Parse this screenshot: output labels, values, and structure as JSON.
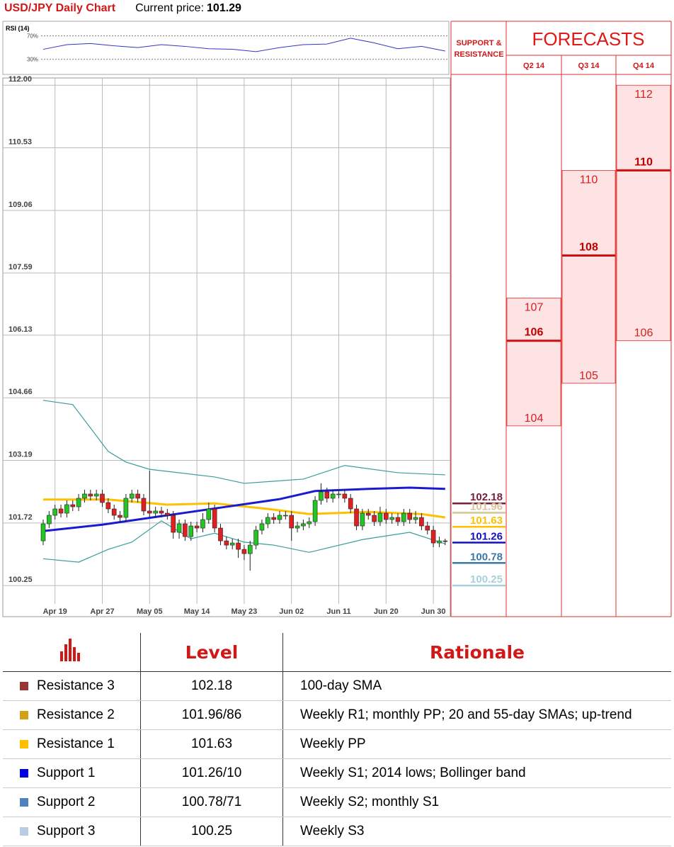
{
  "header": {
    "title": "USD/JPY Daily Chart",
    "price_label": "Current price:",
    "price": 101.29
  },
  "chart_data": [
    {
      "type": "candlestick",
      "grid": true,
      "up_color": "#22c522",
      "down_color": "#e02020",
      "ylim": [
        99.52,
        112.17
      ],
      "yticks": [
        {
          "value": 112,
          "label": "112.00"
        },
        110.53,
        109.06,
        107.59,
        106.13,
        104.66,
        103.19,
        101.72,
        100.25
      ],
      "categories": [
        null,
        null,
        "Apr 19",
        null,
        null,
        null,
        null,
        null,
        null,
        null,
        "Apr 27",
        null,
        null,
        null,
        null,
        null,
        null,
        null,
        "May 05",
        null,
        null,
        null,
        null,
        null,
        null,
        null,
        "May 14",
        null,
        null,
        null,
        null,
        null,
        null,
        null,
        "May 23",
        null,
        null,
        null,
        null,
        null,
        null,
        null,
        "Jun 02",
        null,
        null,
        null,
        null,
        null,
        null,
        null,
        "Jun 11",
        null,
        null,
        null,
        null,
        null,
        null,
        null,
        "Jun 20",
        null,
        null,
        null,
        null,
        null,
        null,
        null,
        "Jun 30",
        null,
        null
      ],
      "open": [
        101.3,
        101.7,
        101.9,
        102.05,
        101.95,
        102.15,
        102.1,
        102.3,
        102.4,
        102.35,
        102.4,
        102.2,
        102.05,
        101.9,
        101.85,
        102.3,
        102.4,
        102.3,
        102.0,
        101.95,
        102.0,
        101.95,
        101.9,
        101.5,
        101.7,
        101.4,
        101.65,
        101.6,
        101.8,
        102.05,
        101.6,
        101.3,
        101.2,
        101.25,
        101.1,
        101.0,
        101.2,
        101.55,
        101.7,
        101.85,
        101.8,
        101.9,
        101.9,
        101.6,
        101.65,
        101.7,
        101.75,
        102.25,
        102.45,
        102.3,
        102.4,
        102.4,
        102.3,
        102.05,
        101.65,
        101.95,
        101.9,
        101.75,
        101.95,
        101.8,
        101.85,
        101.75,
        101.95,
        101.8,
        101.85,
        101.65,
        101.55,
        101.25,
        101.3
      ],
      "high": [
        101.8,
        102.0,
        102.15,
        102.15,
        102.25,
        102.25,
        102.4,
        102.5,
        102.5,
        102.5,
        102.5,
        102.3,
        102.15,
        102.0,
        102.4,
        102.5,
        102.5,
        102.4,
        102.95,
        102.1,
        102.1,
        102.05,
        102.0,
        101.8,
        101.8,
        101.75,
        101.75,
        101.95,
        102.2,
        102.15,
        101.7,
        101.4,
        101.35,
        101.35,
        101.2,
        101.3,
        101.65,
        101.8,
        101.95,
        101.95,
        102.0,
        102.0,
        102.0,
        101.75,
        101.8,
        101.85,
        102.35,
        102.65,
        102.55,
        102.5,
        102.5,
        102.5,
        102.4,
        102.15,
        102.05,
        102.05,
        102.0,
        102.1,
        102.05,
        101.95,
        101.95,
        102.05,
        102.05,
        102.0,
        101.95,
        101.75,
        101.65,
        101.4,
        101.35
      ],
      "low": [
        101.2,
        101.6,
        101.8,
        101.85,
        101.85,
        102.0,
        102.0,
        102.2,
        102.25,
        102.25,
        102.1,
        101.95,
        101.8,
        101.75,
        101.75,
        102.2,
        102.2,
        101.9,
        101.85,
        101.85,
        101.85,
        101.8,
        101.35,
        101.35,
        101.3,
        101.3,
        101.5,
        101.5,
        101.7,
        101.5,
        101.2,
        101.1,
        101.1,
        100.9,
        100.85,
        100.6,
        101.1,
        101.45,
        101.6,
        101.7,
        101.7,
        101.8,
        101.3,
        101.5,
        101.55,
        101.6,
        101.65,
        102.15,
        102.2,
        102.2,
        102.3,
        102.2,
        101.95,
        101.55,
        101.55,
        101.8,
        101.65,
        101.65,
        101.7,
        101.7,
        101.65,
        101.65,
        101.7,
        101.7,
        101.55,
        101.45,
        101.15,
        101.15,
        101.2
      ],
      "close": [
        101.7,
        101.9,
        102.05,
        101.95,
        102.15,
        102.1,
        102.3,
        102.4,
        102.35,
        102.4,
        102.2,
        102.05,
        101.9,
        101.85,
        102.3,
        102.4,
        102.3,
        102.0,
        101.95,
        102.0,
        101.95,
        101.9,
        101.5,
        101.7,
        101.4,
        101.65,
        101.6,
        101.8,
        102.05,
        101.6,
        101.3,
        101.2,
        101.25,
        101.1,
        101.0,
        101.2,
        101.55,
        101.7,
        101.85,
        101.8,
        101.9,
        101.9,
        101.6,
        101.65,
        101.7,
        101.75,
        102.25,
        102.45,
        102.3,
        102.4,
        102.4,
        102.3,
        102.05,
        101.65,
        101.95,
        101.9,
        101.75,
        101.95,
        101.8,
        101.85,
        101.75,
        101.95,
        101.8,
        101.85,
        101.65,
        101.55,
        101.25,
        101.3,
        101.29
      ],
      "series": [
        {
          "color": "#3a9c9c",
          "width": 1.2,
          "x": [
            0,
            5,
            11,
            14,
            18,
            29,
            34,
            44,
            51,
            60,
            68
          ],
          "values": [
            104.6,
            104.5,
            103.4,
            103.15,
            102.98,
            102.8,
            102.65,
            102.75,
            103.07,
            102.9,
            102.85
          ]
        },
        {
          "color": "#3a9c9c",
          "width": 1.2,
          "x": [
            0,
            6,
            11,
            15,
            20,
            25,
            29,
            34,
            39,
            45,
            54,
            62,
            68
          ],
          "values": [
            100.88,
            100.8,
            101.1,
            101.27,
            101.77,
            101.35,
            101.48,
            101.27,
            101.2,
            101.03,
            101.33,
            101.5,
            101.23
          ]
        },
        {
          "color": "#ffc000",
          "width": 3,
          "x": [
            0,
            11,
            21,
            29,
            38,
            45,
            55,
            64,
            68
          ],
          "values": [
            102.27,
            102.27,
            102.15,
            102.18,
            102.05,
            101.93,
            101.98,
            101.93,
            101.85
          ]
        },
        {
          "color": "#1a1ad0",
          "width": 3,
          "x": [
            0,
            10,
            21,
            30,
            40,
            46,
            55,
            62,
            68
          ],
          "values": [
            101.53,
            101.68,
            101.9,
            102.08,
            102.28,
            102.47,
            102.52,
            102.55,
            102.52
          ]
        }
      ]
    },
    {
      "type": "line",
      "title": "RSI (14)",
      "xlim": [
        0,
        68
      ],
      "ylim": [
        4,
        95
      ],
      "yticks": [
        {
          "value": 70,
          "label": "70%"
        },
        {
          "value": 30,
          "label": "30%"
        }
      ],
      "x": [
        0,
        4,
        8,
        12,
        16,
        20,
        24,
        28,
        32,
        36,
        40,
        44,
        48,
        52,
        56,
        60,
        64,
        68
      ],
      "series": [
        {
          "color": "#3535c8",
          "values": [
            47,
            55,
            57,
            53,
            50,
            55,
            52,
            48,
            47,
            43,
            50,
            55,
            56,
            66,
            58,
            48,
            52,
            44
          ]
        }
      ]
    }
  ],
  "levels_panel": {
    "title": "SUPPORT & RESISTANCE",
    "levels": [
      {
        "value": 102.18,
        "color": "#7b1e3a"
      },
      {
        "value": 101.96,
        "color": "#d8c59a"
      },
      {
        "value": 101.63,
        "color": "#ffc000"
      },
      {
        "value": 101.26,
        "color": "#1010c0"
      },
      {
        "value": 100.78,
        "color": "#3a78a8"
      },
      {
        "value": 100.25,
        "color": "#a8d0dc"
      }
    ]
  },
  "forecasts": {
    "title": "FORECASTS",
    "quarters": [
      {
        "name": "Q2 14",
        "high": 107,
        "mid": 106,
        "low": 104
      },
      {
        "name": "Q3 14",
        "high": 110,
        "mid": 108,
        "low": 105
      },
      {
        "name": "Q4 14",
        "high": 112,
        "mid": 110,
        "low": 106
      }
    ]
  },
  "table": {
    "columns": [
      "Level",
      "Rationale"
    ],
    "rows": [
      {
        "name": "Resistance 3",
        "color": "#953735",
        "level": "102.18",
        "rationale": "100-day SMA"
      },
      {
        "name": "Resistance 2",
        "color": "#d4a017",
        "level": "101.96/86",
        "rationale": "Weekly R1; monthly PP; 20 and 55-day SMAs; up-trend"
      },
      {
        "name": "Resistance 1",
        "color": "#ffc000",
        "level": "101.63",
        "rationale": "Weekly PP"
      },
      {
        "name": "Support 1",
        "color": "#0000e0",
        "level": "101.26/10",
        "rationale": "Weekly S1; 2014 lows; Bollinger band"
      },
      {
        "name": "Support 2",
        "color": "#4f81bd",
        "level": "100.78/71",
        "rationale": "Weekly S2; monthly S1"
      },
      {
        "name": "Support 3",
        "color": "#b8cce4",
        "level": "100.25",
        "rationale": "Weekly S3"
      }
    ]
  }
}
